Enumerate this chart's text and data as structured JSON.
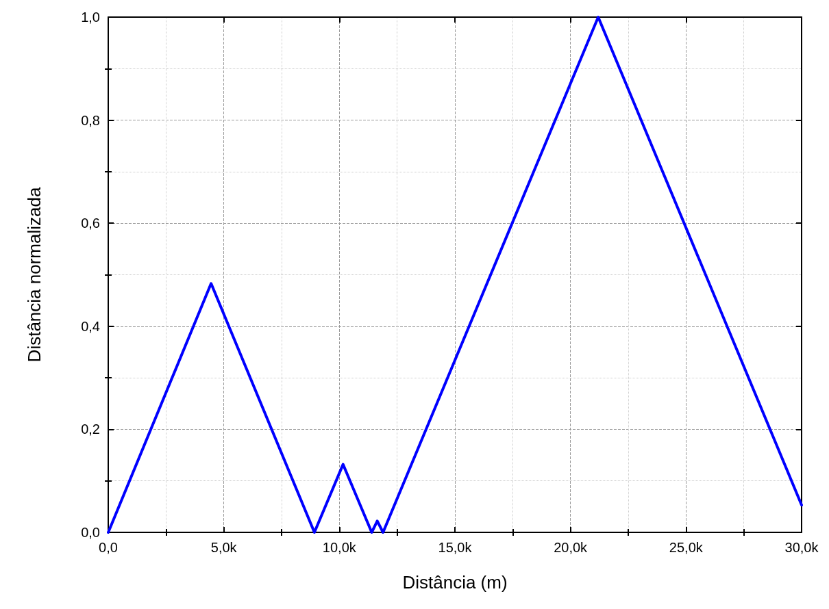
{
  "chart_data": {
    "type": "line",
    "xlabel": "Distância (m)",
    "ylabel": "Distância normalizada",
    "x": [
      0,
      4450,
      8920,
      10160,
      11400,
      11640,
      11890,
      21200,
      30000
    ],
    "series": [
      {
        "color": "#0000ff",
        "values": [
          0,
          0.483,
          0,
          0.132,
          0,
          0.022,
          0,
          1.0,
          0.053
        ]
      }
    ],
    "xlim": [
      0,
      30000
    ],
    "xticks": [
      {
        "value": 0,
        "label": "0,0"
      },
      {
        "value": 5000,
        "label": "5,0k"
      },
      {
        "value": 10000,
        "label": "10,0k"
      },
      {
        "value": 15000,
        "label": "15,0k"
      },
      {
        "value": 20000,
        "label": "20,0k"
      },
      {
        "value": 25000,
        "label": "25,0k"
      },
      {
        "value": 30000,
        "label": "30,0k"
      }
    ],
    "ylim": [
      0,
      1
    ],
    "yticks": [
      {
        "value": 0,
        "label": "0,0"
      },
      {
        "value": 0.2,
        "label": "0,2"
      },
      {
        "value": 0.4,
        "label": "0,4"
      },
      {
        "value": 0.6,
        "label": "0,6"
      },
      {
        "value": 0.8,
        "label": "0,8"
      },
      {
        "value": 1,
        "label": "1,0"
      }
    ],
    "grid": true,
    "marker": "none",
    "line_style": "solid"
  }
}
